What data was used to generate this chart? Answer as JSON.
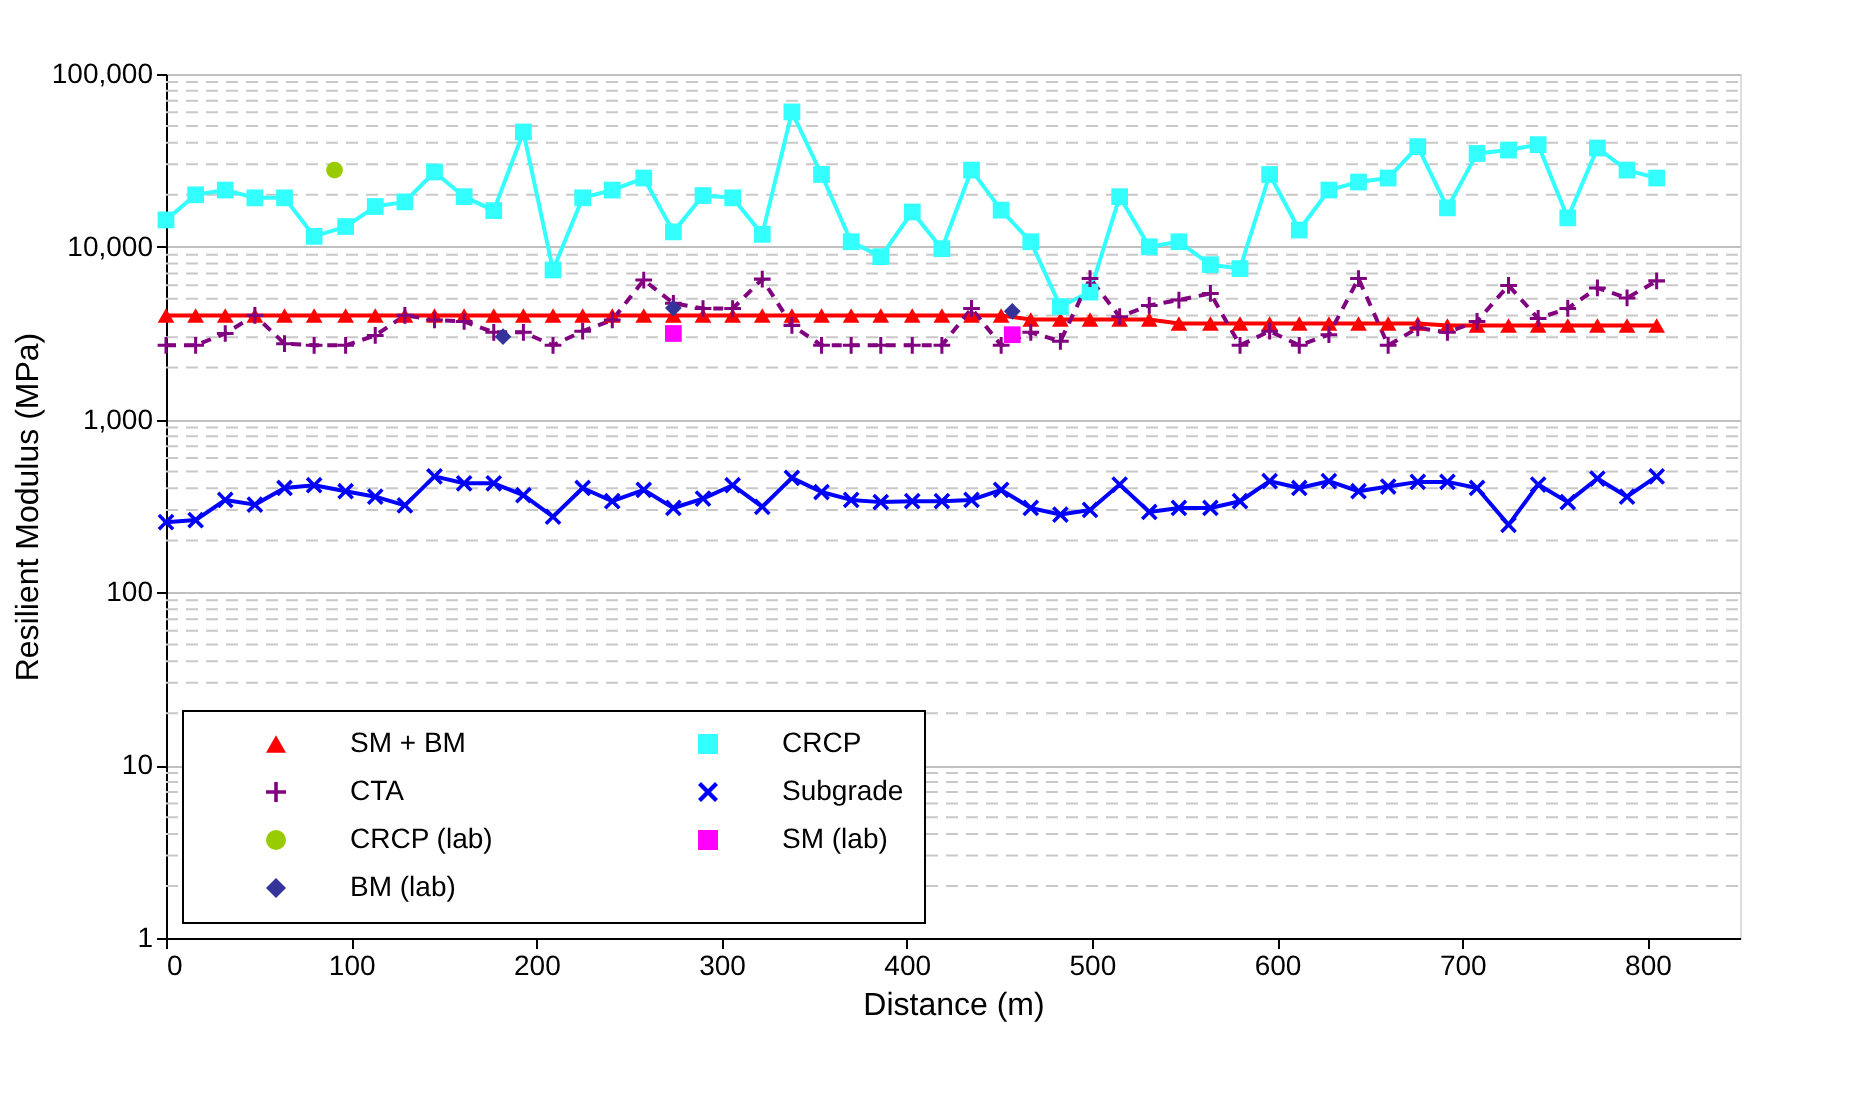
{
  "chart_data": {
    "type": "line",
    "xlabel": "Distance (m)",
    "ylabel": "Resilient Modulus (MPa)",
    "x": [
      0,
      16,
      32,
      48,
      64,
      80,
      97,
      113,
      129,
      145,
      161,
      177,
      193,
      209,
      225,
      241,
      258,
      274,
      290,
      306,
      322,
      338,
      354,
      370,
      386,
      403,
      419,
      435,
      451,
      467,
      483,
      499,
      515,
      531,
      547,
      564,
      580,
      596,
      612,
      628,
      644,
      660,
      676,
      692,
      708,
      725,
      741,
      757,
      773,
      789,
      805
    ],
    "series": [
      {
        "name": "SM + BM",
        "color": "#ff0000",
        "marker": "triangle",
        "line_style": "solid",
        "values": [
          4000,
          4000,
          4000,
          4000,
          4000,
          4000,
          4000,
          4000,
          4000,
          4000,
          4000,
          4000,
          4000,
          4000,
          4000,
          4000,
          4000,
          4000,
          4000,
          4000,
          4000,
          4000,
          4000,
          4000,
          4000,
          4000,
          4000,
          4000,
          4000,
          3800,
          3800,
          3800,
          3800,
          3800,
          3600,
          3600,
          3600,
          3600,
          3600,
          3600,
          3600,
          3600,
          3600,
          3500,
          3500,
          3500,
          3500,
          3500,
          3500,
          3500,
          3500
        ]
      },
      {
        "name": "CRCP",
        "color": "#33ffff",
        "marker": "square",
        "line_style": "solid",
        "values": [
          14300,
          20000,
          21300,
          19200,
          19200,
          11500,
          13100,
          17100,
          18200,
          27100,
          19500,
          16200,
          46200,
          7340,
          19200,
          21300,
          25000,
          12200,
          19800,
          19200,
          11800,
          60300,
          26200,
          10700,
          8770,
          15900,
          9750,
          27800,
          16300,
          10700,
          4510,
          5470,
          19500,
          10000,
          10700,
          7880,
          7480,
          26200,
          12500,
          21300,
          23700,
          25000,
          38000,
          16800,
          34700,
          36300,
          39000,
          14700,
          37300,
          27800,
          25000
        ]
      },
      {
        "name": "CTA",
        "color": "#800080",
        "marker": "cross",
        "line_style": "dashed",
        "values": [
          2690,
          2690,
          3150,
          4010,
          2750,
          2690,
          2690,
          3070,
          4010,
          3770,
          3700,
          3200,
          3200,
          2690,
          3250,
          3770,
          6420,
          4710,
          4390,
          4390,
          6500,
          3510,
          2690,
          2690,
          2690,
          2690,
          2690,
          4400,
          2690,
          3200,
          2840,
          6550,
          3940,
          4580,
          4920,
          5370,
          2690,
          3250,
          2690,
          3100,
          6550,
          2690,
          3390,
          3200,
          3700,
          5980,
          3850,
          4400,
          5780,
          5060,
          6350
        ]
      },
      {
        "name": "Subgrade",
        "color": "#0000ff",
        "marker": "x",
        "line_style": "solid",
        "values": [
          255,
          262,
          343,
          322,
          402,
          417,
          385,
          358,
          319,
          469,
          428,
          428,
          365,
          274,
          402,
          337,
          392,
          308,
          349,
          417,
          313,
          460,
          381,
          343,
          333,
          337,
          337,
          343,
          392,
          308,
          282,
          300,
          421,
          292,
          308,
          308,
          337,
          440,
          402,
          440,
          385,
          410,
          436,
          436,
          402,
          246,
          421,
          333,
          456,
          358,
          469
        ]
      },
      {
        "name": "CRCP (lab)",
        "type": "scatter",
        "color": "#99cc00",
        "marker": "circle",
        "x": [
          91
        ],
        "values": [
          27800
        ]
      },
      {
        "name": "SM (lab)",
        "type": "scatter",
        "color": "#ff00ff",
        "marker": "square",
        "x": [
          274,
          457
        ],
        "values": [
          3150,
          3100
        ]
      },
      {
        "name": "BM (lab)",
        "type": "scatter",
        "color": "#333399",
        "marker": "diamond",
        "x": [
          182,
          274,
          457
        ],
        "values": [
          3020,
          4420,
          4230
        ]
      }
    ],
    "log": "y",
    "xlim": [
      0,
      850
    ],
    "xticks": [
      0,
      100,
      200,
      300,
      400,
      500,
      600,
      700,
      800
    ],
    "ylim": [
      1,
      100000
    ],
    "yticks": [
      1,
      10,
      100,
      {
        "value": 1000,
        "label": "1,000"
      },
      {
        "value": 10000,
        "label": "10,000"
      },
      {
        "value": 100000,
        "label": "100,000"
      }
    ],
    "grid": "y",
    "legend": "bottom left"
  }
}
